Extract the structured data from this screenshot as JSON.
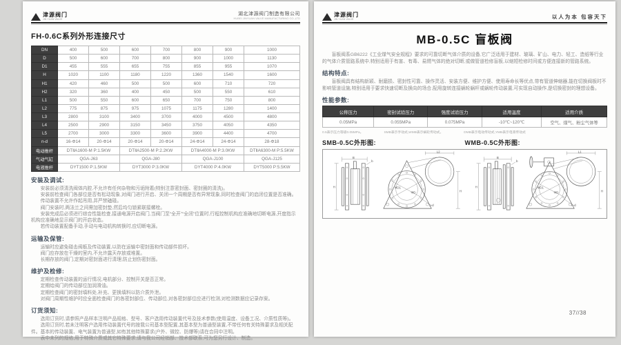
{
  "left": {
    "header": {
      "logo_text": "津源阀门",
      "logo_sub": "JIN YUAN VALVE",
      "company": "湖北津源阀门制造有限公司",
      "company_sub": "HUBEI JINYUAN VALVE MANUFACTURING CO.,LTD"
    },
    "title": "FH-0.6C系列外形连接尺寸",
    "table": {
      "rows": [
        {
          "label": "DN",
          "cells": [
            {
              "t": "400"
            },
            {
              "t": "500"
            },
            {
              "t": "600"
            },
            {
              "t": "700"
            },
            {
              "t": "800"
            },
            {
              "t": "900"
            },
            {
              "t": "1000"
            }
          ]
        },
        {
          "label": "D",
          "cells": [
            {
              "t": "500"
            },
            {
              "t": "600"
            },
            {
              "t": "700"
            },
            {
              "t": "800"
            },
            {
              "t": "900"
            },
            {
              "t": "1000"
            },
            {
              "t": "1130"
            }
          ]
        },
        {
          "label": "D1",
          "cells": [
            {
              "t": "455"
            },
            {
              "t": "555"
            },
            {
              "t": "655"
            },
            {
              "t": "755"
            },
            {
              "t": "855"
            },
            {
              "t": "955"
            },
            {
              "t": "1070"
            }
          ]
        },
        {
          "label": "H",
          "cells": [
            {
              "t": "1020"
            },
            {
              "t": "1100"
            },
            {
              "t": "1180"
            },
            {
              "t": "1220"
            },
            {
              "t": "1360"
            },
            {
              "t": "1540"
            },
            {
              "t": "1600"
            }
          ]
        },
        {
          "label": "H1",
          "cells": [
            {
              "t": "420"
            },
            {
              "t": "460"
            },
            {
              "t": "500"
            },
            {
              "t": "500"
            },
            {
              "t": "600"
            },
            {
              "t": "710"
            },
            {
              "t": "720"
            }
          ]
        },
        {
          "label": "H2",
          "cells": [
            {
              "t": "320"
            },
            {
              "t": "360"
            },
            {
              "t": "400"
            },
            {
              "t": "450"
            },
            {
              "t": "500"
            },
            {
              "t": "550"
            },
            {
              "t": "610"
            }
          ]
        },
        {
          "label": "L1",
          "cells": [
            {
              "t": "500"
            },
            {
              "t": "550"
            },
            {
              "t": "600"
            },
            {
              "t": "650"
            },
            {
              "t": "700"
            },
            {
              "t": "750"
            },
            {
              "t": "800"
            }
          ]
        },
        {
          "label": "L2",
          "cells": [
            {
              "t": "775"
            },
            {
              "t": "875"
            },
            {
              "t": "975"
            },
            {
              "t": "1075"
            },
            {
              "t": "1175"
            },
            {
              "t": "1280"
            },
            {
              "t": "1400"
            }
          ]
        },
        {
          "label": "L3",
          "cells": [
            {
              "t": "2800"
            },
            {
              "t": "3100"
            },
            {
              "t": "3400"
            },
            {
              "t": "3700"
            },
            {
              "t": "4000"
            },
            {
              "t": "4500"
            },
            {
              "t": "4800"
            }
          ]
        },
        {
          "label": "L4",
          "cells": [
            {
              "t": "2500"
            },
            {
              "t": "2900"
            },
            {
              "t": "3150"
            },
            {
              "t": "3450"
            },
            {
              "t": "3750"
            },
            {
              "t": "4050"
            },
            {
              "t": "4350"
            }
          ]
        },
        {
          "label": "L5",
          "cells": [
            {
              "t": "2700"
            },
            {
              "t": "3000"
            },
            {
              "t": "3300"
            },
            {
              "t": "3600"
            },
            {
              "t": "3900"
            },
            {
              "t": "4400"
            },
            {
              "t": "4700"
            }
          ]
        },
        {
          "label": "n-d",
          "cells": [
            {
              "t": "16-Φ14"
            },
            {
              "t": "20-Φ14"
            },
            {
              "t": "20-Φ14"
            },
            {
              "t": "20-Φ14"
            },
            {
              "t": "24-Φ14"
            },
            {
              "t": "24-Φ14"
            },
            {
              "t": "28-Φ18"
            }
          ]
        },
        {
          "label": "电动推杆",
          "cells": [
            {
              "t": "DTⅡA1600-M P:1.5KW",
              "s": 2
            },
            {
              "t": "DTⅡA2500-M P:2.2KW",
              "s": 2
            },
            {
              "t": "DTⅡA4000-M P:3.0KW",
              "s": 2
            },
            {
              "t": "DTⅡA6300-M P:5.5KW",
              "s": 1
            }
          ]
        },
        {
          "label": "气动气缸",
          "cells": [
            {
              "t": "QGA-J63",
              "s": 2
            },
            {
              "t": "QGA-J80",
              "s": 2
            },
            {
              "t": "QGA-J100",
              "s": 2
            },
            {
              "t": "QGA-J125",
              "s": 1
            }
          ]
        },
        {
          "label": "电液推杆",
          "cells": [
            {
              "t": "DYT1500 P:1.5KW",
              "s": 2
            },
            {
              "t": "DYT3000 P:3.0KW",
              "s": 2
            },
            {
              "t": "DYT4000 P:4.0KW",
              "s": 2
            },
            {
              "t": "DYT5000 P:5.5KW",
              "s": 1
            }
          ]
        }
      ]
    },
    "sections": [
      {
        "heading": "安装及调试:",
        "paragraphs": [
          "安装前必须清洗阀体内腔,不允许有任何杂物和污垢附着(特别注意密封面、密封圈的清洗)。",
          "安装前检查阀门各部位是否有松动现象,对阀门进行开启、关闭一个周期是否有异常现象,同时检查阀门的启闭位置是否准确。",
          "传动装置不允许作起吊用,并严禁磕碰。",
          "阀门安装时,两法兰之间需加密封垫,然后均匀锁紧联接螺栓。",
          "安装完成后必须进行综合性能检查,接通电源开启阀门,当阀门至“全开”“全闭”位置时,行程控制机构应准确地切断电源,开度指示机构应准确地显示阀门的开启状态。",
          "若传动装置配备手动,手动与电动机构转换时,应切断电源。"
        ]
      },
      {
        "heading": "运输及保管:",
        "paragraphs": [
          "运输时应避免碰击阀板及传动装置,以防在运输中密封面和传动部件损坏。",
          "阀门应存放在干燥的室内,不允许露天存放或堆置。",
          "长期存放的阀门,定期对密封面进行清理,防止划伤密封面。"
        ]
      },
      {
        "heading": "维护及检修:",
        "paragraphs": [
          "定期检查传动装置的运行情况,电机部分、控制开关是否正常。",
          "定期给阀门的传动部位加润滑油。",
          "定期检查阀门的密封填料处,补充、更换填料以防介质外泄。",
          "对阀门周期性维护时应全面检查阀门的各密封部位、传动部位,对各密封部位应进行检测,对检测数据应记录存案。"
        ]
      },
      {
        "heading": "订货须知:",
        "paragraphs": [
          "选用订货时,请参照产品样本注明产品规格、型号、客户选用传动装置代号及技术参数(使用温度、设备工况、介质性质等)。",
          "选用订货时,若未注明客户选用传动装置代号的按我公司基本型配置,其基本型为普通型装置,不带任何有关特殊要求及相关配件。基本的传动装置、电气装置为普通型,如有其他特殊要求(户外、微控、防爆等)请在合同中注明。",
          "表中未列的规格,用于特殊介质或其它特殊要求,请与我公司经销部、技术部联系,可为您另行设计、制造。"
        ]
      }
    ]
  },
  "right": {
    "header": {
      "logo_text": "津源阀门",
      "logo_sub": "JIN YUAN VALVE",
      "slogan": "以人为本  包容天下"
    },
    "title": "MB-0.5C 盲板阀",
    "intro": "盲板阀系GB6222《工业煤气安全规程》要求的可靠切断气体介质的设备,它广泛适用于建材、玻璃、矿山、电力、轻工、造纸等行业的气体介质管路系统中,特别适用于有害、有毒、易燃气体的绝对切断,或做管道检修盲板,以缩短检修时间或方便连接新的管路系统。",
    "structure": {
      "heading": "结构特点:",
      "text": "盲板阀具有结构新颖、耐磨损、密封性可靠、操作灵活、安装方便、维护方便、使用寿命长等优点,带有管道伸缩器,能在切换阀板时不影响管道设施,特别适用于要求快速切断及换向的场合,配用旋转连接蜗轮蜗杆或蜗轮传动装置,可实现自动操作,是切换密封的理想设备。"
    },
    "performance": {
      "heading": "性能参数:",
      "headers": [
        "公称压力",
        "密封试验压力",
        "强度试验压力",
        "适用温度",
        "适用介质"
      ],
      "values": [
        "0.05MPa",
        "0.055MPa",
        "0.075MPa",
        "-10℃~120℃",
        "空气、煤气、粉尘气体等"
      ]
    },
    "footnotes": [
      "0.5表示压力等级0.05MPa。",
      "SMB表示手动式,WMB表示蜗轮传动式。",
      "DMB表示电动传动式,YMB表示电液传动式"
    ],
    "diagrams": {
      "left_title": "SMB-0.5C外形图:",
      "right_title": "WMB-0.5C外形图:",
      "labels": {
        "width": "B",
        "height": "H",
        "thickness": "b",
        "span_smb": "L2",
        "span_wmb": "L1",
        "dia_outer": "ΦD",
        "dia_bolt": "ΦD1",
        "bolt_count": "n-d"
      }
    },
    "page_number": "37//38"
  }
}
